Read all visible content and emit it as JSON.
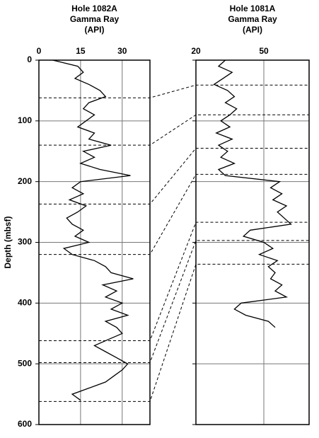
{
  "chart_data": [
    {
      "type": "line",
      "title": "Hole 1082A",
      "subtitle": "Gamma Ray",
      "unit_label": "(API)",
      "ylabel": "Depth (mbsf)",
      "show_ytick_labels": true,
      "xlim": [
        0,
        40
      ],
      "xticks": [
        0,
        15,
        30
      ],
      "ylim": [
        0,
        600
      ],
      "yticks": [
        0,
        100,
        200,
        300,
        400,
        500,
        600
      ],
      "y_inverted": true,
      "grid": true,
      "series": [
        {
          "color": "#000000",
          "depths": [
            0,
            10,
            20,
            30,
            40,
            50,
            60,
            70,
            80,
            90,
            100,
            110,
            120,
            130,
            140,
            150,
            160,
            170,
            180,
            190,
            200,
            210,
            220,
            230,
            240,
            250,
            260,
            270,
            280,
            290,
            300,
            310,
            320,
            330,
            340,
            350,
            360,
            370,
            380,
            390,
            400,
            410,
            420,
            430,
            440,
            450,
            460,
            470,
            480,
            490,
            500,
            510,
            520,
            530,
            540,
            550,
            560
          ],
          "values": [
            5,
            14,
            16,
            13,
            18,
            22,
            24,
            18,
            16,
            20,
            17,
            14,
            20,
            18,
            26,
            16,
            20,
            15,
            22,
            33,
            15,
            12,
            16,
            11,
            17,
            14,
            10,
            12,
            16,
            13,
            18,
            9,
            12,
            20,
            24,
            26,
            34,
            23,
            28,
            24,
            30,
            26,
            32,
            24,
            28,
            30,
            25,
            20,
            24,
            28,
            32,
            30,
            27,
            24,
            18,
            12,
            15
          ]
        }
      ],
      "markers": [
        62,
        140,
        237,
        320,
        462,
        498,
        562
      ]
    },
    {
      "type": "line",
      "title": "Hole 1081A",
      "subtitle": "Gamma Ray",
      "unit_label": "(API)",
      "show_ytick_labels": false,
      "xlim": [
        20,
        70
      ],
      "xticks": [
        20,
        50
      ],
      "ylim": [
        0,
        600
      ],
      "yticks": [
        0,
        100,
        200,
        300,
        400,
        500,
        600
      ],
      "y_inverted": true,
      "grid": true,
      "series": [
        {
          "color": "#000000",
          "depths": [
            0,
            10,
            20,
            30,
            40,
            50,
            60,
            70,
            80,
            90,
            100,
            110,
            120,
            130,
            140,
            150,
            160,
            170,
            180,
            190,
            200,
            210,
            220,
            230,
            240,
            250,
            260,
            270,
            280,
            290,
            300,
            310,
            320,
            330,
            340,
            350,
            360,
            370,
            380,
            390,
            400,
            410,
            420,
            430,
            440
          ],
          "values": [
            33,
            30,
            36,
            32,
            28,
            34,
            37,
            33,
            38,
            35,
            31,
            35,
            29,
            36,
            30,
            34,
            31,
            37,
            30,
            33,
            57,
            53,
            58,
            54,
            60,
            56,
            59,
            62,
            44,
            41,
            50,
            54,
            48,
            56,
            52,
            55,
            53,
            58,
            55,
            60,
            40,
            37,
            42,
            52,
            55
          ]
        }
      ],
      "markers": [
        41,
        90,
        145,
        188,
        267,
        297,
        336
      ]
    }
  ]
}
